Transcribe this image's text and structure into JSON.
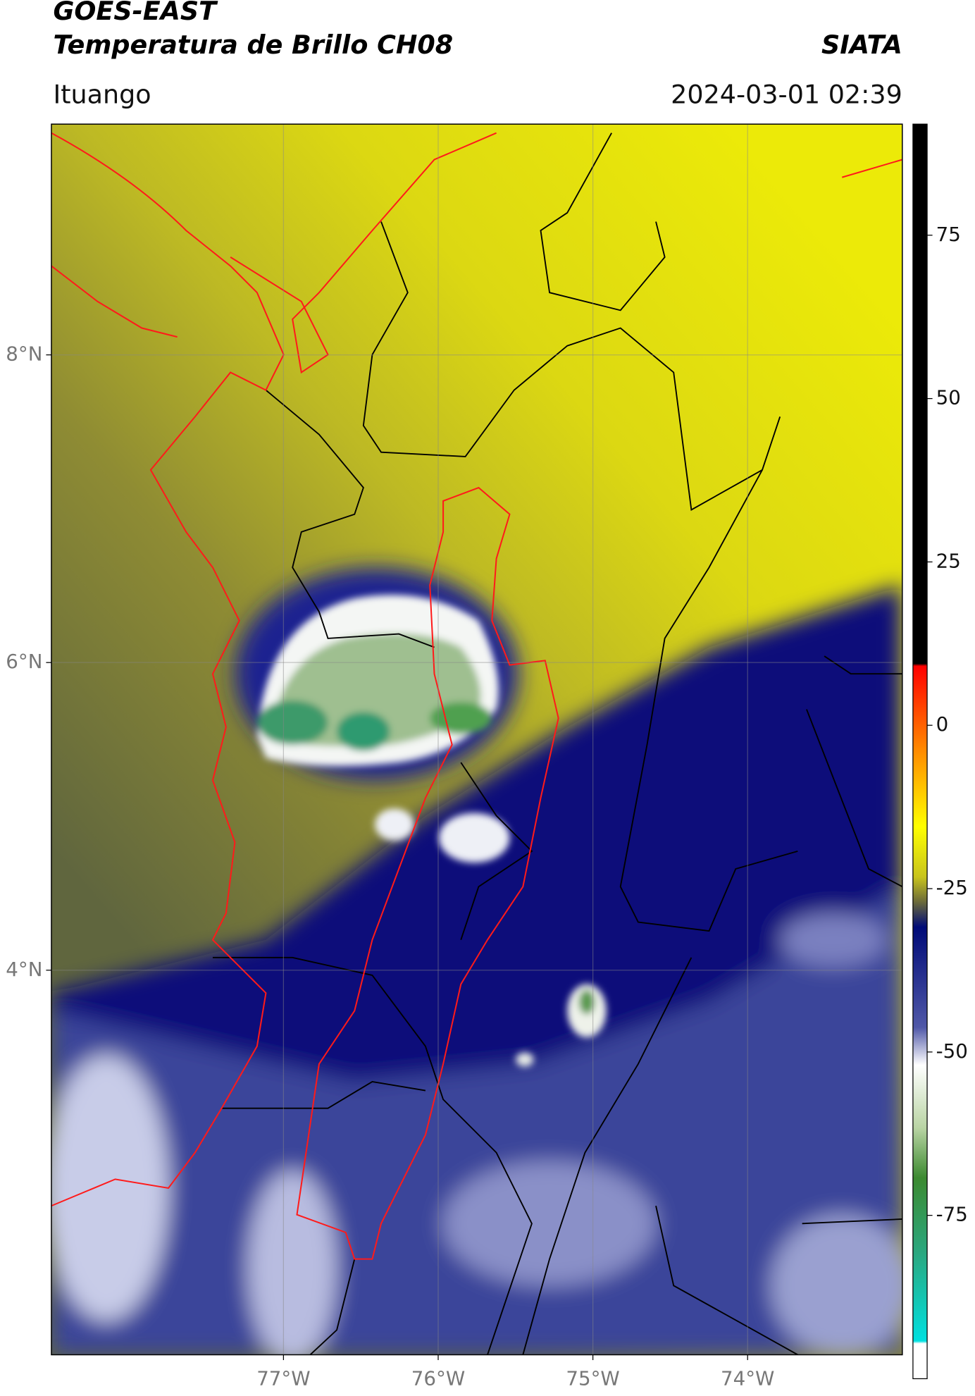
{
  "header": {
    "title": "GOES-EAST",
    "subtitle": "Temperatura de Brillo CH08",
    "org": "SIATA",
    "location": "Ituango",
    "timestamp": "2024-03-01 02:39"
  },
  "map": {
    "xlim": [
      -78.5,
      -73
    ],
    "ylim": [
      1.5,
      9.5
    ],
    "xticks": [
      {
        "value": -77,
        "label": "77°W"
      },
      {
        "value": -76,
        "label": "76°W"
      },
      {
        "value": -75,
        "label": "75°W"
      },
      {
        "value": -74,
        "label": "74°W"
      }
    ],
    "yticks": [
      {
        "value": 4,
        "label": "4°N"
      },
      {
        "value": 6,
        "label": "6°N"
      },
      {
        "value": 8,
        "label": "8°N"
      }
    ],
    "grid": true
  },
  "colorbar": {
    "lim": [
      -100,
      92
    ],
    "ticks": [
      75,
      50,
      25,
      0,
      -25,
      -50,
      -75
    ]
  }
}
